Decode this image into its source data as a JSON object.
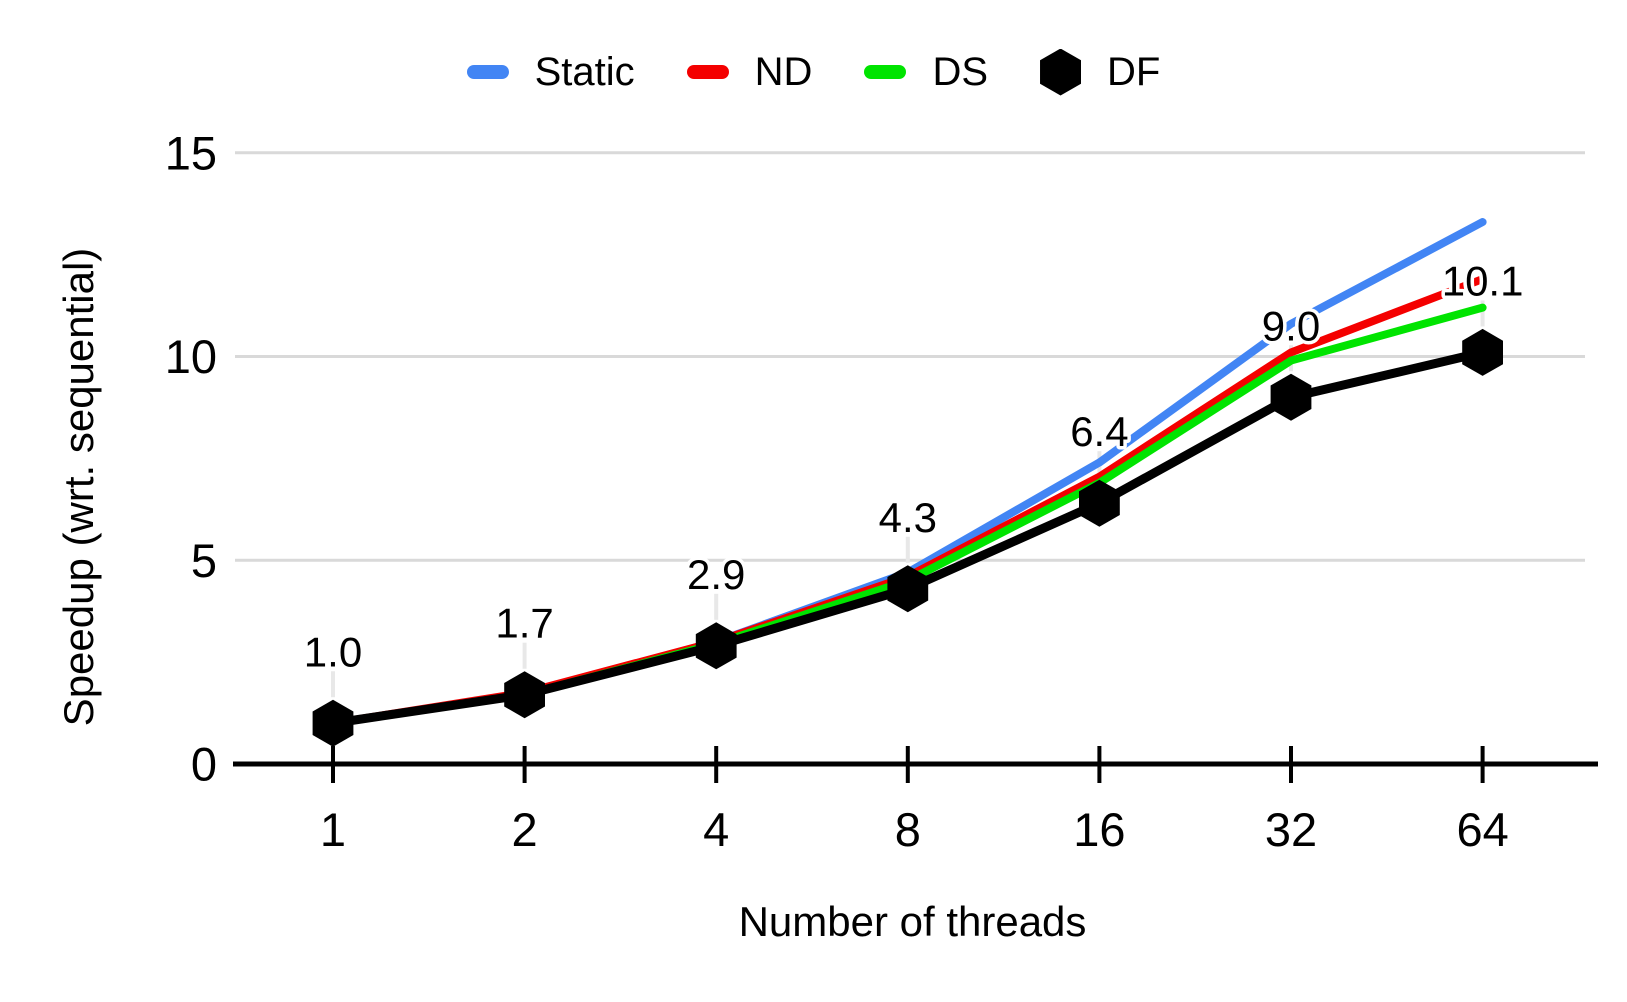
{
  "chart_data": {
    "type": "line",
    "title": "",
    "xlabel": "Number of threads",
    "ylabel": "Speedup (wrt. sequential)",
    "x_scale": "log2",
    "x": [
      1,
      2,
      4,
      8,
      16,
      32,
      64
    ],
    "x_tick_labels": [
      "1",
      "2",
      "4",
      "8",
      "16",
      "32",
      "64"
    ],
    "y_ticks": [
      0,
      5,
      10,
      15
    ],
    "y_tick_labels": [
      "0",
      "5",
      "10",
      "15"
    ],
    "ylim": [
      0,
      15
    ],
    "grid": "horizontal",
    "legend_position": "top",
    "series": [
      {
        "name": "Static",
        "color": "#4285F4",
        "marker": "none",
        "values": [
          1.0,
          1.7,
          3.0,
          4.7,
          7.4,
          10.8,
          13.3
        ]
      },
      {
        "name": "ND",
        "color": "#F40000",
        "marker": "none",
        "values": [
          1.0,
          1.75,
          3.0,
          4.6,
          7.05,
          10.1,
          11.9
        ]
      },
      {
        "name": "DS",
        "color": "#00E400",
        "marker": "none",
        "values": [
          1.0,
          1.7,
          2.95,
          4.5,
          6.9,
          9.9,
          11.2
        ]
      },
      {
        "name": "DF",
        "color": "#000000",
        "marker": "hexagon",
        "values": [
          1.0,
          1.7,
          2.9,
          4.3,
          6.4,
          9.0,
          10.1
        ],
        "data_labels": [
          "1.0",
          "1.7",
          "2.9",
          "4.3",
          "6.4",
          "9.0",
          "10.1"
        ]
      }
    ]
  },
  "colors": {
    "background": "#ffffff",
    "grid": "#d9d9d9",
    "leader_line": "#e8e8e8",
    "axis": "#000000",
    "text": "#000000",
    "label_halo": "#ffffff"
  }
}
